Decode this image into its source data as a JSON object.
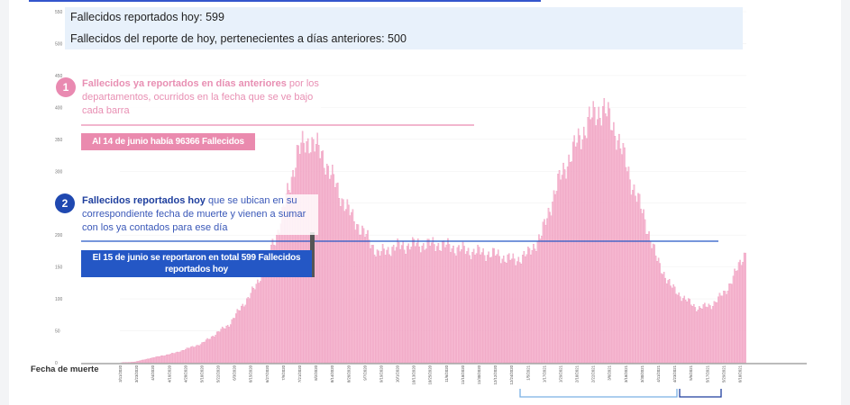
{
  "info": {
    "reported_today": "Fallecidos reportados hoy: 599",
    "previous_days": "Fallecidos del reporte de hoy, pertenecientes a días anteriores: 500"
  },
  "annotations": {
    "one": {
      "number": "1",
      "bold": "Fallecidos ya reportados en días anteriores",
      "text": " por los departamentos, ocurridos en la fecha que se ve bajo cada barra",
      "callout": "Al 14 de junio había 96366 Fallecidos"
    },
    "two": {
      "number": "2",
      "bold": "Fallecidos reportados hoy",
      "text": " que se ubican en su correspondiente fecha de muerte y vienen a sumar con los ya contados para ese día",
      "callout_line1": "El 15 de junio se reportaron en total 599 Fallecidos",
      "callout_line2": "reportados hoy"
    }
  },
  "colors": {
    "previous": "#f7bcd4",
    "previous_border": "#e98ab1",
    "today": "#2457c5",
    "info_bg": "#e8f1fb"
  },
  "chart_data": {
    "type": "bar",
    "xlabel": "Fecha de muerte",
    "ylim": [
      0,
      550
    ],
    "yticks": [
      0,
      50,
      100,
      150,
      200,
      250,
      300,
      350,
      400,
      450,
      500,
      550
    ],
    "x_start": "3/11/2020",
    "x_end": "6/14/2021",
    "xtick_labels": [
      "3/11/2020",
      "3/23/2020",
      "4/4/2020",
      "4/16/2020",
      "4/28/2020",
      "5/10/2020",
      "5/22/2020",
      "6/3/2020",
      "6/15/2020",
      "6/27/2020",
      "7/9/2020",
      "7/21/2020",
      "8/2/2020",
      "8/14/2020",
      "8/26/2020",
      "9/7/2020",
      "9/19/2020",
      "10/1/2020",
      "10/13/2020",
      "10/25/2020",
      "11/6/2020",
      "11/18/2020",
      "11/30/2020",
      "12/12/2020",
      "12/24/2020",
      "1/5/2021",
      "1/17/2021",
      "1/29/2021",
      "2/10/2021",
      "2/22/2021",
      "3/6/2021",
      "3/18/2021",
      "3/30/2021",
      "4/11/2021",
      "4/23/2021",
      "5/5/2021",
      "5/17/2021",
      "5/29/2021",
      "6/10/2021"
    ],
    "series": [
      {
        "name": "Fallecidos ya reportados en días anteriores",
        "keypoints": [
          [
            0,
            0
          ],
          [
            10,
            1
          ],
          [
            20,
            6
          ],
          [
            40,
            15
          ],
          [
            60,
            30
          ],
          [
            80,
            60
          ],
          [
            100,
            120
          ],
          [
            115,
            200
          ],
          [
            125,
            280
          ],
          [
            130,
            330
          ],
          [
            140,
            350
          ],
          [
            150,
            320
          ],
          [
            160,
            270
          ],
          [
            170,
            230
          ],
          [
            180,
            200
          ],
          [
            190,
            170
          ],
          [
            200,
            180
          ],
          [
            215,
            185
          ],
          [
            235,
            185
          ],
          [
            255,
            175
          ],
          [
            275,
            170
          ],
          [
            290,
            160
          ],
          [
            300,
            170
          ],
          [
            310,
            200
          ],
          [
            320,
            270
          ],
          [
            330,
            320
          ],
          [
            345,
            380
          ],
          [
            355,
            400
          ],
          [
            365,
            360
          ],
          [
            375,
            290
          ],
          [
            385,
            230
          ],
          [
            395,
            160
          ],
          [
            405,
            120
          ],
          [
            415,
            100
          ],
          [
            425,
            85
          ],
          [
            435,
            90
          ],
          [
            445,
            110
          ],
          [
            455,
            150
          ],
          [
            465,
            200
          ],
          [
            475,
            300
          ],
          [
            485,
            380
          ],
          [
            495,
            440
          ],
          [
            505,
            490
          ],
          [
            515,
            510
          ],
          [
            525,
            515
          ],
          [
            540,
            520
          ],
          [
            550,
            520
          ],
          [
            555,
            510
          ],
          [
            558,
            460
          ],
          [
            560,
            300
          ],
          [
            562,
            120
          ],
          [
            565,
            20
          ]
        ]
      },
      {
        "name": "Fallecidos reportados hoy",
        "keypoints": [
          [
            550,
            5
          ],
          [
            555,
            20
          ],
          [
            558,
            70
          ],
          [
            560,
            100
          ],
          [
            562,
            60
          ],
          [
            564,
            30
          ],
          [
            565,
            15
          ]
        ]
      }
    ]
  }
}
